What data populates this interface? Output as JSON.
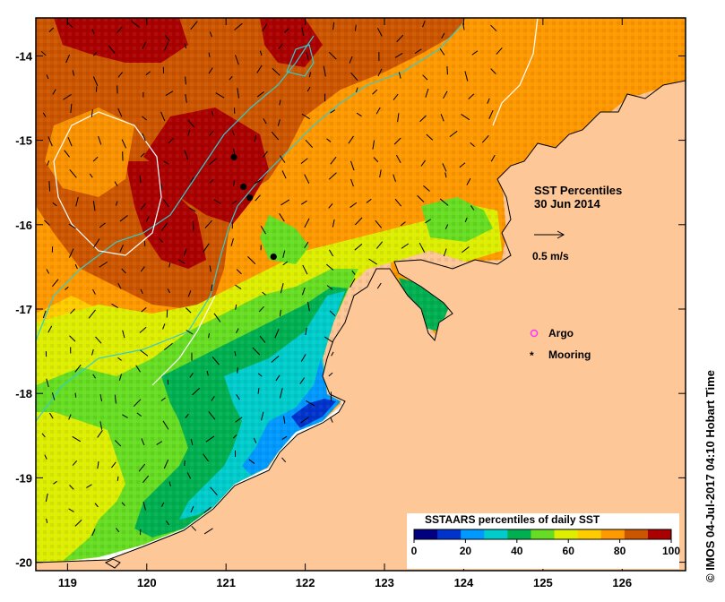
{
  "map": {
    "title_line1": "SST Percentiles",
    "title_line2": "30 Jun 2014",
    "vector_scale_label": "0.5 m/s",
    "legend": {
      "argo_label": "Argo",
      "mooring_label": "Mooring",
      "argo_color": "#ff33ff",
      "mooring_color": "#000000"
    },
    "colorbar": {
      "title": "SSTAARS percentiles of daily SST",
      "ticks": [
        "0",
        "20",
        "40",
        "60",
        "80",
        "100"
      ],
      "colors": [
        "#000080",
        "#0033cc",
        "#0099ff",
        "#00cccc",
        "#00b050",
        "#66dd22",
        "#ddee00",
        "#ffcc00",
        "#ff9900",
        "#cc5500",
        "#aa0000"
      ]
    },
    "x_axis": {
      "range": [
        118.6,
        126.8
      ],
      "ticks": [
        "119",
        "120",
        "121",
        "122",
        "123",
        "124",
        "125",
        "126"
      ]
    },
    "y_axis": {
      "range": [
        -20.1,
        -13.55
      ],
      "ticks": [
        "-14",
        "-15",
        "-16",
        "-17",
        "-18",
        "-19",
        "-20"
      ]
    },
    "moorings": [
      {
        "lon": 121.1,
        "lat": -15.2
      },
      {
        "lon": 121.22,
        "lat": -15.55
      },
      {
        "lon": 121.3,
        "lat": -15.68
      },
      {
        "lon": 121.6,
        "lat": -16.38
      }
    ],
    "credit": "IMOS 04-Jul-2017 04:10 Hobart Time",
    "credit_symbol": "©"
  }
}
